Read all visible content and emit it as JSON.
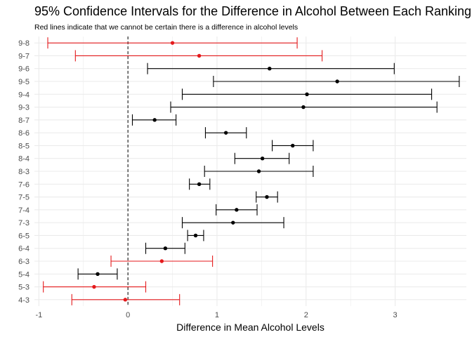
{
  "chart_data": {
    "type": "errorbar",
    "title": "95% Confidence Intervals for the Difference in Alcohol Between Each Ranking",
    "subtitle": "Red lines indicate that we cannot be certain there is a difference in alcohol levels",
    "xlabel": "Difference in Mean Alcohol Levels",
    "ylabel": "",
    "xlim": [
      -1.05,
      3.8
    ],
    "xticks": [
      -1,
      0,
      1,
      2,
      3
    ],
    "reference_line_x": 0,
    "grid": true,
    "colors": {
      "significant": "#000000",
      "not_significant": "#e41a1c",
      "grid": "#ebebeb"
    },
    "categories": [
      "9-8",
      "9-7",
      "9-6",
      "9-5",
      "9-4",
      "9-3",
      "8-7",
      "8-6",
      "8-5",
      "8-4",
      "8-3",
      "7-6",
      "7-5",
      "7-4",
      "7-3",
      "6-5",
      "6-4",
      "6-3",
      "5-4",
      "5-3",
      "4-3"
    ],
    "intervals": [
      {
        "label": "9-8",
        "estimate": 0.5,
        "lower": -0.9,
        "upper": 1.9,
        "significant": false
      },
      {
        "label": "9-7",
        "estimate": 0.8,
        "lower": -0.59,
        "upper": 2.18,
        "significant": false
      },
      {
        "label": "9-6",
        "estimate": 1.59,
        "lower": 0.22,
        "upper": 2.99,
        "significant": true
      },
      {
        "label": "9-5",
        "estimate": 2.35,
        "lower": 0.96,
        "upper": 3.72,
        "significant": true
      },
      {
        "label": "9-4",
        "estimate": 2.01,
        "lower": 0.61,
        "upper": 3.41,
        "significant": true
      },
      {
        "label": "9-3",
        "estimate": 1.97,
        "lower": 0.48,
        "upper": 3.47,
        "significant": true
      },
      {
        "label": "8-7",
        "estimate": 0.3,
        "lower": 0.05,
        "upper": 0.54,
        "significant": true
      },
      {
        "label": "8-6",
        "estimate": 1.1,
        "lower": 0.87,
        "upper": 1.33,
        "significant": true
      },
      {
        "label": "8-5",
        "estimate": 1.85,
        "lower": 1.62,
        "upper": 2.08,
        "significant": true
      },
      {
        "label": "8-4",
        "estimate": 1.51,
        "lower": 1.2,
        "upper": 1.81,
        "significant": true
      },
      {
        "label": "8-3",
        "estimate": 1.47,
        "lower": 0.86,
        "upper": 2.08,
        "significant": true
      },
      {
        "label": "7-6",
        "estimate": 0.8,
        "lower": 0.69,
        "upper": 0.92,
        "significant": true
      },
      {
        "label": "7-5",
        "estimate": 1.56,
        "lower": 1.44,
        "upper": 1.68,
        "significant": true
      },
      {
        "label": "7-4",
        "estimate": 1.22,
        "lower": 0.99,
        "upper": 1.45,
        "significant": true
      },
      {
        "label": "7-3",
        "estimate": 1.18,
        "lower": 0.61,
        "upper": 1.75,
        "significant": true
      },
      {
        "label": "6-5",
        "estimate": 0.76,
        "lower": 0.67,
        "upper": 0.85,
        "significant": true
      },
      {
        "label": "6-4",
        "estimate": 0.42,
        "lower": 0.2,
        "upper": 0.64,
        "significant": true
      },
      {
        "label": "6-3",
        "estimate": 0.38,
        "lower": -0.19,
        "upper": 0.95,
        "significant": false
      },
      {
        "label": "5-4",
        "estimate": -0.34,
        "lower": -0.56,
        "upper": -0.12,
        "significant": true
      },
      {
        "label": "5-3",
        "estimate": -0.38,
        "lower": -0.95,
        "upper": 0.2,
        "significant": false
      },
      {
        "label": "4-3",
        "estimate": -0.03,
        "lower": -0.63,
        "upper": 0.58,
        "significant": false
      }
    ]
  }
}
